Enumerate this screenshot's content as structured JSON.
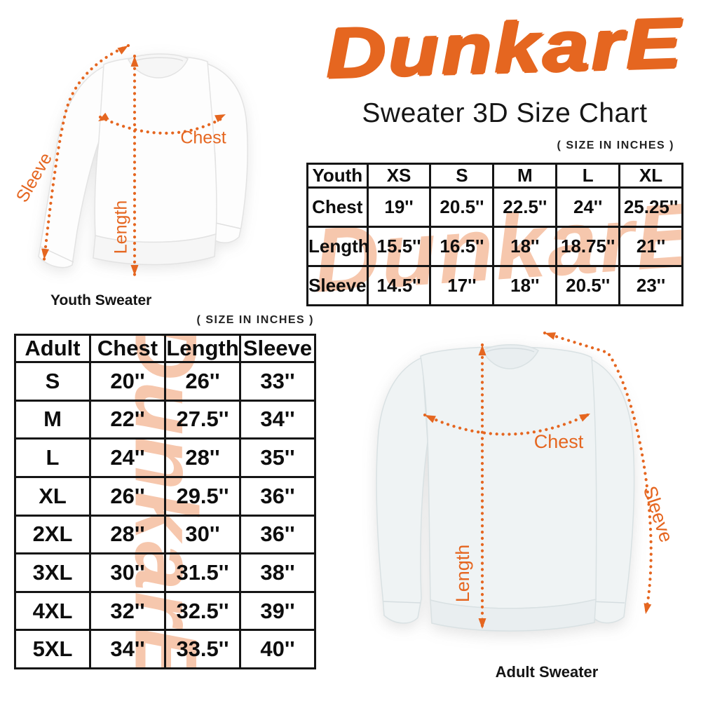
{
  "brand": {
    "logo_text": "DunkarE",
    "title": "Sweater 3D Size Chart",
    "accent_color": "#E56620",
    "watermark_color": "#F6C7AD",
    "text_color": "#141414"
  },
  "size_unit": "inches",
  "youth_section": {
    "size_note": "( SIZE IN INCHES )",
    "caption": "Youth Sweater",
    "labels": {
      "chest": "Chest",
      "length": "Length",
      "sleeve": "Sleeve"
    },
    "table": {
      "header": [
        "Youth",
        "XS",
        "S",
        "M",
        "L",
        "XL"
      ],
      "rows": [
        {
          "label": "Chest",
          "values": [
            "19''",
            "20.5''",
            "22.5''",
            "24''",
            "25.25''"
          ]
        },
        {
          "label": "Length",
          "values": [
            "15.5''",
            "16.5''",
            "18''",
            "18.75''",
            "21''"
          ]
        },
        {
          "label": "Sleeve",
          "values": [
            "14.5''",
            "17''",
            "18''",
            "20.5''",
            "23''"
          ]
        }
      ]
    }
  },
  "adult_section": {
    "size_note": "( SIZE IN INCHES )",
    "caption": "Adult Sweater",
    "labels": {
      "chest": "Chest",
      "length": "Length",
      "sleeve": "Sleeve"
    },
    "table": {
      "header": [
        "Adult",
        "Chest",
        "Length",
        "Sleeve"
      ],
      "rows": [
        {
          "label": "S",
          "values": [
            "20''",
            "26''",
            "33''"
          ]
        },
        {
          "label": "M",
          "values": [
            "22''",
            "27.5''",
            "34''"
          ]
        },
        {
          "label": "L",
          "values": [
            "24''",
            "28''",
            "35''"
          ]
        },
        {
          "label": "XL",
          "values": [
            "26''",
            "29.5''",
            "36''"
          ]
        },
        {
          "label": "2XL",
          "values": [
            "28''",
            "30''",
            "36''"
          ]
        },
        {
          "label": "3XL",
          "values": [
            "30''",
            "31.5''",
            "38''"
          ]
        },
        {
          "label": "4XL",
          "values": [
            "32''",
            "32.5''",
            "39''"
          ]
        },
        {
          "label": "5XL",
          "values": [
            "34''",
            "33.5''",
            "40''"
          ]
        }
      ]
    }
  },
  "chart_data": [
    {
      "type": "table",
      "title": "Youth sweater sizes (inches)",
      "columns": [
        "Youth",
        "XS",
        "S",
        "M",
        "L",
        "XL"
      ],
      "rows": [
        [
          "Chest",
          19,
          20.5,
          22.5,
          24,
          25.25
        ],
        [
          "Length",
          15.5,
          16.5,
          18,
          18.75,
          21
        ],
        [
          "Sleeve",
          14.5,
          17,
          18,
          20.5,
          23
        ]
      ]
    },
    {
      "type": "table",
      "title": "Adult sweater sizes (inches)",
      "columns": [
        "Adult",
        "Chest",
        "Length",
        "Sleeve"
      ],
      "rows": [
        [
          "S",
          20,
          26,
          33
        ],
        [
          "M",
          22,
          27.5,
          34
        ],
        [
          "L",
          24,
          28,
          35
        ],
        [
          "XL",
          26,
          29.5,
          36
        ],
        [
          "2XL",
          28,
          30,
          36
        ],
        [
          "3XL",
          30,
          31.5,
          38
        ],
        [
          "4XL",
          32,
          32.5,
          39
        ],
        [
          "5XL",
          34,
          33.5,
          40
        ]
      ]
    }
  ]
}
